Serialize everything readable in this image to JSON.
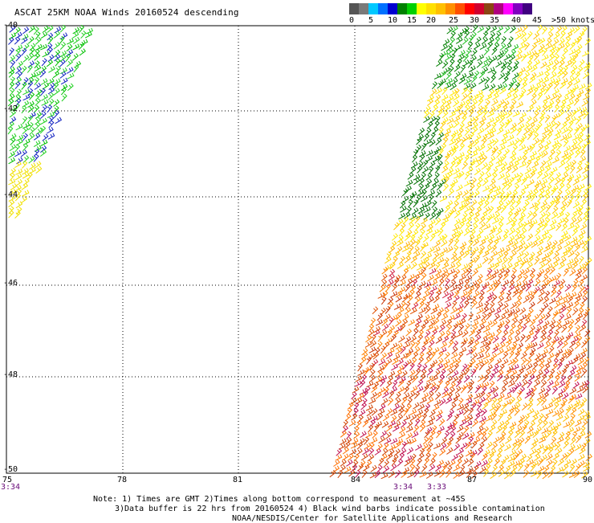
{
  "title": "ASCAT 25KM NOAA Winds 20160524 descending",
  "legend": {
    "labels": [
      "0",
      "5",
      "10",
      "15",
      "20",
      "25",
      "30",
      "35",
      "40",
      "45",
      ">50 knots"
    ],
    "colors": [
      "#555555",
      "#7a7a7a",
      "#00c8ff",
      "#0070ff",
      "#0000d0",
      "#008000",
      "#00d000",
      "#ffff00",
      "#ffe000",
      "#ffc000",
      "#ff9000",
      "#ff5000",
      "#ff0000",
      "#d00030",
      "#8b4513",
      "#b00080",
      "#ff00ff",
      "#8000c0",
      "#400080"
    ]
  },
  "map": {
    "lat_labels": [
      "-40",
      "-42",
      "-44",
      "-46",
      "-48",
      "-50"
    ],
    "lon_labels": [
      "75",
      "78",
      "81",
      "84",
      "87",
      "90"
    ],
    "time_labels": [
      "3:34",
      "3:34",
      "3:33"
    ]
  },
  "notes": {
    "line1": "Note: 1) Times are GMT 2)Times along bottom correspond to measurement at ~45S",
    "line2": "3)Data buffer is 22 hrs from 20160524 4) Black wind barbs indicate possible contamination",
    "line3": "NOAA/NESDIS/Center for Satellite Applications and Research"
  }
}
